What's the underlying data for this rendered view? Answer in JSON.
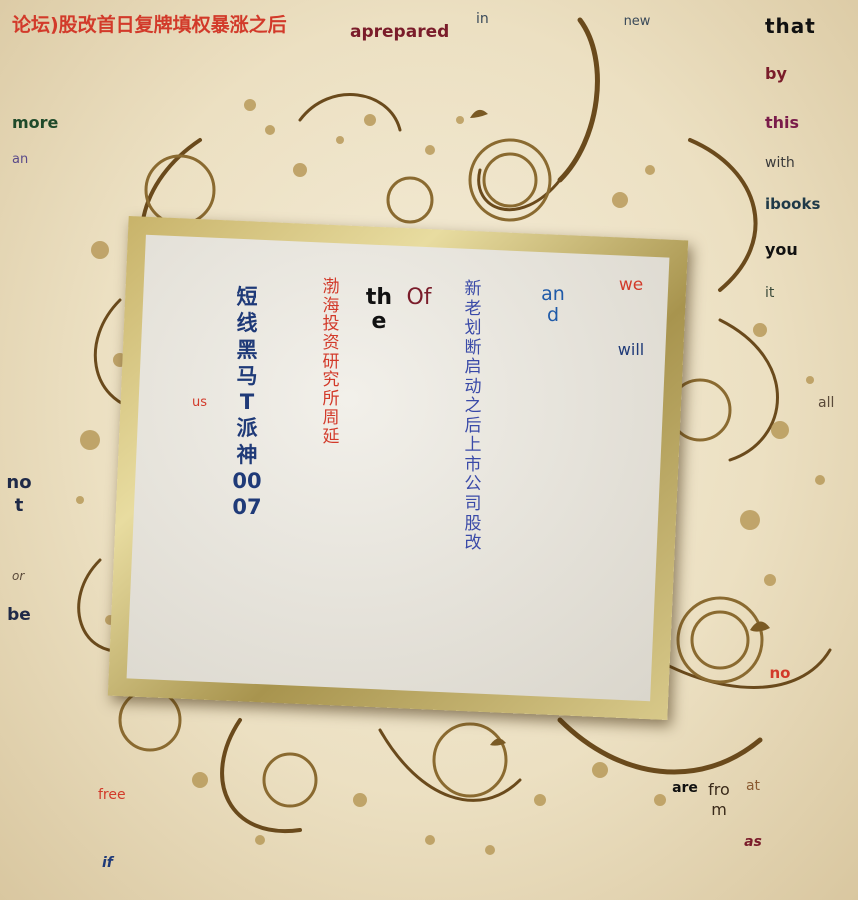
{
  "title": "论坛)股改首日复牌填权暴涨之后",
  "words": {
    "aprepared": "aprepared",
    "in": "in",
    "new": "new",
    "that": "that",
    "by": "by",
    "this": "this",
    "with": "with",
    "ibooks": "ibooks",
    "you": "you",
    "it": "it",
    "more": "more",
    "an": "an",
    "us": "us",
    "all": "all",
    "not": "not",
    "or": "or",
    "be": "be",
    "no": "no",
    "free": "free",
    "if": "if",
    "are": "are",
    "from": "from",
    "at": "at",
    "as": "as"
  },
  "card": {
    "col1": "短线黑马T派神0007",
    "col2": "渤海投资研究所周延",
    "the": "the",
    "of": "Of",
    "col5": "新老划断启动之后上市公司股改",
    "and": "and",
    "we": "we",
    "will": "will"
  },
  "colors": {
    "red": "#d23a2a",
    "navy": "#1f3a78",
    "maroon": "#7a1c2a",
    "gold": "#8a6a30"
  }
}
